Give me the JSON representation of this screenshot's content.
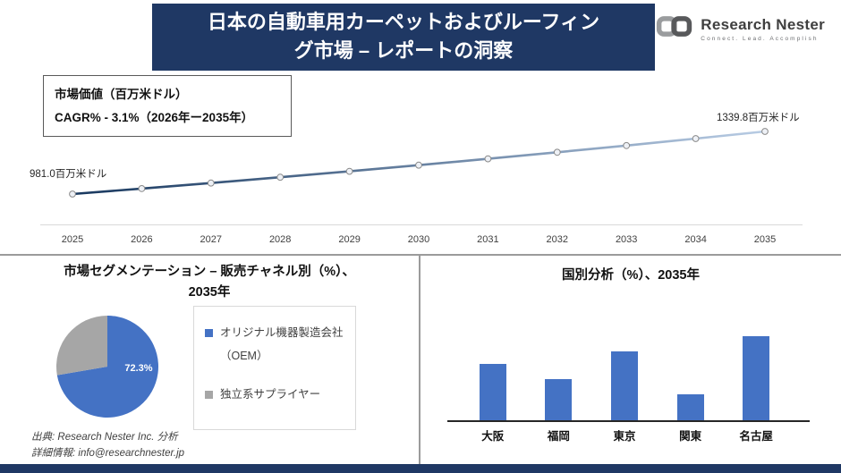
{
  "header": {
    "title_line1": "日本の自動車用カーペットおよびルーフィン",
    "title_line2": "グ市場 – レポートの洞察"
  },
  "logo": {
    "name": "Research Nester",
    "tagline": "Connect. Lead. Accomplish"
  },
  "info_box": {
    "line1": "市場価値（百万米ドル）",
    "line2": "CAGR% - 3.1%（2026年ー2035年）"
  },
  "segmentation": {
    "title_line1": "市場セグメンテーション – 販売チャネル別（%）、",
    "title_line2": "2035年",
    "legend": [
      {
        "color": "#4472c4",
        "lines": [
          "オリジナル機器製造会社",
          "（OEM）"
        ]
      },
      {
        "color": "#a6a6a6",
        "lines": [
          "独立系サプライヤー"
        ]
      }
    ]
  },
  "country": {
    "title": "国別分析（%）、2035年"
  },
  "source": {
    "line1": "出典: Research Nester Inc. 分析",
    "line2": "詳細情報: info@researchnester.jp"
  },
  "colors": {
    "navy": "#1f3864",
    "chart_blue": "#4472c4",
    "chart_gray": "#a6a6a6"
  },
  "chart_data": [
    {
      "type": "line",
      "title": "市場価値（百万米ドル）",
      "x": [
        2025,
        2026,
        2027,
        2028,
        2029,
        2030,
        2031,
        2032,
        2033,
        2034,
        2035
      ],
      "values": [
        981.0,
        1012.1,
        1044.1,
        1077.2,
        1111.3,
        1146.5,
        1182.8,
        1220.3,
        1258.9,
        1298.8,
        1339.8
      ],
      "start_label": "981.0百万米ドル",
      "end_label": "1339.8百万米ドル",
      "cagr": "3.1%",
      "ylim": [
        900,
        1400
      ],
      "grid": false
    },
    {
      "type": "pie",
      "title": "市場セグメンテーション – 販売チャネル別（%）、2035年",
      "labels": [
        "オリジナル機器製造会社（OEM）",
        "独立系サプライヤー"
      ],
      "values": [
        72.3,
        27.7
      ],
      "colors": [
        "#4472c4",
        "#a6a6a6"
      ],
      "data_label": "72.3%",
      "legend_position": "right"
    },
    {
      "type": "bar",
      "title": "国別分析（%）、2035年",
      "categories": [
        "大阪",
        "福岡",
        "東京",
        "関東",
        "名古屋"
      ],
      "values": [
        22,
        16,
        27,
        10,
        33
      ],
      "color": "#4472c4",
      "ylim": [
        0,
        35
      ],
      "grid": false
    }
  ]
}
